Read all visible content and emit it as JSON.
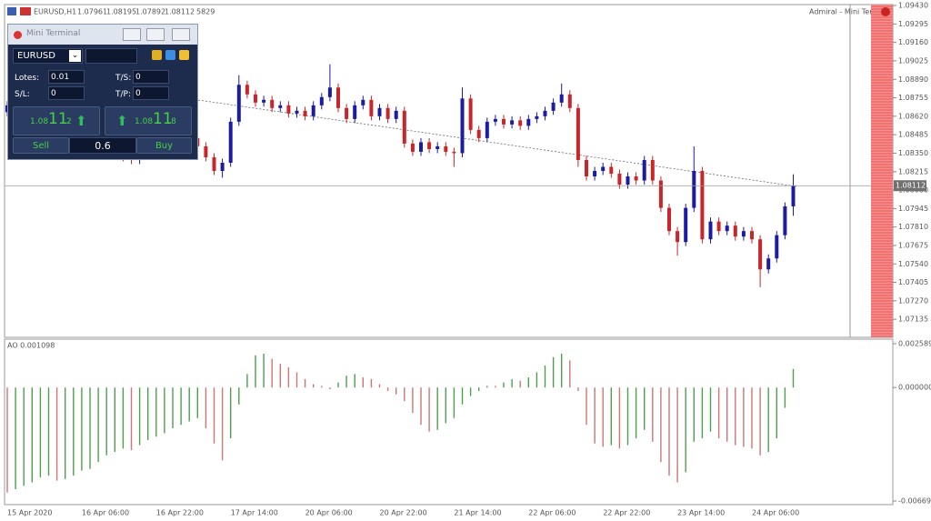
{
  "header": {
    "symbol": "EURUSD,H1",
    "spread": 5829,
    "window_label": "Admiral - Mini Terminal"
  },
  "terminal": {
    "title": "Mini Terminal",
    "symbol": "EURUSD",
    "fields": [
      {
        "label": "Lotes:",
        "value": "0.01"
      },
      {
        "label": "T/S:",
        "value": "0"
      },
      {
        "label": "S/L:",
        "value": "0"
      },
      {
        "label": "T/P:",
        "value": "0"
      }
    ],
    "sell": {
      "big": "1.08",
      "mid": "11",
      "small": "2",
      "label": "Sell"
    },
    "buy": {
      "big": "1.08",
      "mid": "11",
      "small": "8",
      "label": "Buy"
    },
    "volume": "0.6"
  },
  "chart_data": [
    {
      "type": "candlestick",
      "up_color": "#1c1ca0",
      "down_color": "#c8262b",
      "categories": [
        "15 Apr 2020",
        null,
        null,
        null,
        null,
        null,
        null,
        null,
        null,
        "16 Apr 06:00",
        null,
        null,
        null,
        null,
        null,
        null,
        null,
        null,
        "16 Apr 22:00",
        null,
        null,
        null,
        null,
        null,
        null,
        null,
        null,
        "17 Apr 14:00",
        null,
        null,
        null,
        null,
        null,
        null,
        null,
        null,
        "20 Apr 06:00",
        null,
        null,
        null,
        null,
        null,
        null,
        null,
        null,
        "20 Apr 22:00",
        null,
        null,
        null,
        null,
        null,
        null,
        null,
        null,
        "21 Apr 14:00",
        null,
        null,
        null,
        null,
        null,
        null,
        null,
        null,
        "22 Apr 06:00",
        null,
        null,
        null,
        null,
        null,
        null,
        null,
        null,
        "22 Apr 22:00",
        null,
        null,
        null,
        null,
        null,
        null,
        null,
        null,
        "23 Apr 14:00",
        null,
        null,
        null,
        null,
        null,
        null,
        null,
        null,
        "24 Apr 06:00",
        null,
        null,
        null,
        null,
        null
      ],
      "open": [
        1.0865,
        1.087,
        1.0875,
        1.088,
        1.0878,
        1.0872,
        1.0868,
        1.0862,
        1.0858,
        1.086,
        1.0855,
        1.085,
        1.0846,
        1.084,
        1.0838,
        1.0832,
        1.083,
        1.0835,
        1.0842,
        1.0848,
        1.0852,
        1.0858,
        1.0852,
        1.0846,
        1.084,
        1.0832,
        1.0822,
        1.0828,
        1.0858,
        1.0885,
        1.0878,
        1.0872,
        1.0874,
        1.0868,
        1.087,
        1.0864,
        1.0866,
        1.0862,
        1.087,
        1.0876,
        1.0883,
        1.0868,
        1.086,
        1.087,
        1.0874,
        1.0862,
        1.0868,
        1.086,
        1.0866,
        1.0842,
        1.0836,
        1.0843,
        1.0838,
        1.084,
        1.0836,
        1.0835,
        1.0875,
        1.0852,
        1.0846,
        1.0858,
        1.086,
        1.0856,
        1.0859,
        1.0855,
        1.086,
        1.0862,
        1.0866,
        1.0872,
        1.0878,
        1.0868,
        1.083,
        1.0818,
        1.0822,
        1.0825,
        1.082,
        1.0812,
        1.0818,
        1.0815,
        1.083,
        1.0815,
        1.0795,
        1.0778,
        1.077,
        1.0795,
        1.0822,
        1.0772,
        1.0785,
        1.0778,
        1.0782,
        1.0774,
        1.0778,
        1.0772,
        1.075,
        1.0758,
        1.0775,
        1.07961
      ],
      "high": [
        1.0873,
        1.0878,
        1.0883,
        1.0883,
        1.0881,
        1.0875,
        1.0871,
        1.0865,
        1.0863,
        1.0863,
        1.0858,
        1.0853,
        1.0849,
        1.0843,
        1.0841,
        1.0835,
        1.0838,
        1.0845,
        1.0851,
        1.0855,
        1.0861,
        1.0861,
        1.0855,
        1.0849,
        1.0843,
        1.0835,
        1.0831,
        1.0861,
        1.0892,
        1.0888,
        1.0881,
        1.0877,
        1.0877,
        1.0873,
        1.0873,
        1.0869,
        1.0869,
        1.0873,
        1.0879,
        1.09,
        1.0886,
        1.0871,
        1.0873,
        1.0877,
        1.0877,
        1.0871,
        1.0871,
        1.0869,
        1.0869,
        1.0845,
        1.0846,
        1.0846,
        1.0843,
        1.0843,
        1.0839,
        1.0883,
        1.0878,
        1.0855,
        1.0861,
        1.0863,
        1.0863,
        1.0862,
        1.0862,
        1.0863,
        1.0865,
        1.0869,
        1.0875,
        1.0886,
        1.0881,
        1.0871,
        1.0833,
        1.0825,
        1.0828,
        1.0828,
        1.0823,
        1.0821,
        1.0821,
        1.0833,
        1.0833,
        1.0818,
        1.0798,
        1.0781,
        1.0798,
        1.084,
        1.0825,
        1.0788,
        1.0788,
        1.0785,
        1.0785,
        1.0781,
        1.0781,
        1.0775,
        1.0761,
        1.0778,
        1.0799,
        1.08195
      ],
      "low": [
        1.0862,
        1.0867,
        1.0872,
        1.0875,
        1.0869,
        1.0865,
        1.0859,
        1.0855,
        1.0855,
        1.0852,
        1.0847,
        1.0843,
        1.0837,
        1.0835,
        1.0829,
        1.0827,
        1.0827,
        1.0832,
        1.0839,
        1.0845,
        1.0849,
        1.0849,
        1.0843,
        1.0837,
        1.0829,
        1.0819,
        1.0817,
        1.0825,
        1.0855,
        1.0875,
        1.0869,
        1.0869,
        1.0865,
        1.0865,
        1.0861,
        1.0861,
        1.0859,
        1.0859,
        1.0867,
        1.0873,
        1.0865,
        1.0857,
        1.0857,
        1.0867,
        1.0859,
        1.0859,
        1.0857,
        1.0857,
        1.0839,
        1.0833,
        1.0833,
        1.0835,
        1.0835,
        1.0833,
        1.0825,
        1.0832,
        1.0849,
        1.0843,
        1.0843,
        1.0855,
        1.0853,
        1.0853,
        1.0852,
        1.0852,
        1.0857,
        1.0859,
        1.0863,
        1.0869,
        1.0865,
        1.0825,
        1.0815,
        1.0815,
        1.0819,
        1.0817,
        1.0809,
        1.0809,
        1.0812,
        1.0812,
        1.0812,
        1.0792,
        1.0775,
        1.076,
        1.0767,
        1.0792,
        1.0769,
        1.0769,
        1.0775,
        1.0775,
        1.0771,
        1.0771,
        1.0769,
        1.0737,
        1.0747,
        1.0755,
        1.0772,
        1.07892
      ],
      "close": [
        1.087,
        1.0875,
        1.088,
        1.0878,
        1.0872,
        1.0868,
        1.0862,
        1.0858,
        1.086,
        1.0855,
        1.085,
        1.0846,
        1.084,
        1.0838,
        1.0832,
        1.083,
        1.0835,
        1.0842,
        1.0848,
        1.0852,
        1.0858,
        1.0852,
        1.0846,
        1.084,
        1.0832,
        1.0822,
        1.0828,
        1.0858,
        1.0885,
        1.0878,
        1.0872,
        1.0874,
        1.0868,
        1.087,
        1.0864,
        1.0866,
        1.0862,
        1.087,
        1.0876,
        1.0883,
        1.0868,
        1.086,
        1.087,
        1.0874,
        1.0862,
        1.0868,
        1.086,
        1.0866,
        1.0842,
        1.0836,
        1.0843,
        1.0838,
        1.084,
        1.0836,
        1.0835,
        1.0875,
        1.0852,
        1.0846,
        1.0858,
        1.086,
        1.0856,
        1.0859,
        1.0855,
        1.086,
        1.0862,
        1.0866,
        1.0872,
        1.0878,
        1.0868,
        1.083,
        1.0818,
        1.0822,
        1.0825,
        1.082,
        1.0812,
        1.0818,
        1.0815,
        1.083,
        1.0815,
        1.0795,
        1.0778,
        1.077,
        1.0795,
        1.0822,
        1.0772,
        1.0785,
        1.0778,
        1.0782,
        1.0774,
        1.0778,
        1.0772,
        1.075,
        1.0758,
        1.0775,
        1.07961,
        1.08112
      ],
      "ylim": [
        1.07003,
        1.09437
      ],
      "yticks": [
        {
          "value": 1.0943,
          "label": "1.09430"
        },
        1.09295,
        {
          "value": 1.0916,
          "label": "1.09160"
        },
        1.09025,
        {
          "value": 1.0889,
          "label": "1.08890"
        },
        1.08755,
        {
          "value": 1.0862,
          "label": "1.08620"
        },
        1.08485,
        {
          "value": 1.0835,
          "label": "1.08350"
        },
        1.08215,
        {
          "value": 1.0808,
          "label": "1.08080"
        },
        1.07945,
        {
          "value": 1.0781,
          "label": "1.07810"
        },
        1.07675,
        {
          "value": 1.0754,
          "label": "1.07540"
        },
        1.07405,
        {
          "value": 1.0727,
          "label": "1.07270"
        },
        1.07135
      ],
      "grid": false
    },
    {
      "type": "bar",
      "title": "AO 0.001098",
      "up_color": "#4f9e4f",
      "down_color": "#cf7474",
      "values": [
        -0.0062,
        -0.006,
        -0.0058,
        -0.0056,
        -0.0053,
        -0.0052,
        -0.0055,
        -0.0054,
        -0.0052,
        -0.0049,
        -0.0048,
        -0.0044,
        -0.004,
        -0.0038,
        -0.0036,
        -0.0037,
        -0.0034,
        -0.0031,
        -0.0029,
        -0.0027,
        -0.0024,
        -0.0022,
        -0.002,
        -0.0018,
        -0.0024,
        -0.0033,
        -0.0043,
        -0.003,
        -0.001,
        0.0008,
        0.0019,
        0.002,
        0.0017,
        0.0014,
        0.0012,
        0.0009,
        0.0005,
        0.0002,
        0.0001,
        -0.0001,
        0.0003,
        0.0007,
        0.0008,
        0.0006,
        0.0005,
        0.0002,
        -0.0002,
        -0.0004,
        -0.0008,
        -0.0015,
        -0.0022,
        -0.0026,
        -0.0025,
        -0.0021,
        -0.0018,
        -0.001,
        -0.0005,
        -0.0002,
        0.0001,
        0.0001,
        0.0003,
        0.0005,
        0.0004,
        0.0006,
        0.0009,
        0.0013,
        0.0018,
        0.002,
        0.0016,
        -0.0002,
        -0.0022,
        -0.0033,
        -0.0035,
        -0.0034,
        -0.0036,
        -0.0034,
        -0.003,
        -0.0025,
        -0.0032,
        -0.0044,
        -0.0052,
        -0.0056,
        -0.005,
        -0.0032,
        -0.003,
        -0.0026,
        -0.003,
        -0.0032,
        -0.0034,
        -0.0035,
        -0.0036,
        -0.004,
        -0.0038,
        -0.003,
        -0.0012,
        0.001098
      ],
      "ylim": [
        -0.006912,
        0.002857
      ],
      "yticks": [
        0.002589,
        {
          "value": 0,
          "label": "0.000000"
        },
        -0.006697
      ],
      "grid": false
    }
  ]
}
